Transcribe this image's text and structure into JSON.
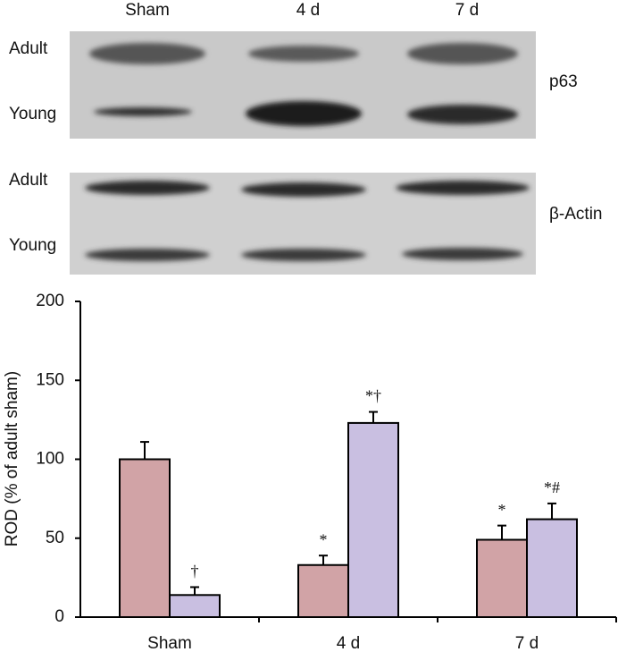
{
  "blots": {
    "lanes": [
      "Sham",
      "4 d",
      "7 d"
    ],
    "panels": [
      {
        "rows": [
          "Adult",
          "Young"
        ],
        "protein": "p63"
      },
      {
        "rows": [
          "Adult",
          "Young"
        ],
        "protein": "β-Actin"
      }
    ]
  },
  "chart_data": {
    "type": "bar",
    "y_label": "ROD (% of adult sham)",
    "categories": [
      "Sham",
      "4 d",
      "7 d"
    ],
    "series": [
      {
        "color": "#d1a3a6",
        "values": [
          100,
          33,
          49
        ],
        "errors": [
          11,
          6,
          9
        ],
        "annotations": [
          null,
          "*",
          "*"
        ]
      },
      {
        "color": "#c9bfe1",
        "values": [
          14,
          123,
          62
        ],
        "errors": [
          5,
          7,
          10
        ],
        "annotations": [
          "†",
          "*†",
          "*#"
        ]
      }
    ],
    "ylim": [
      0,
      200
    ],
    "yticks": [
      0,
      50,
      100,
      150,
      200
    ]
  }
}
